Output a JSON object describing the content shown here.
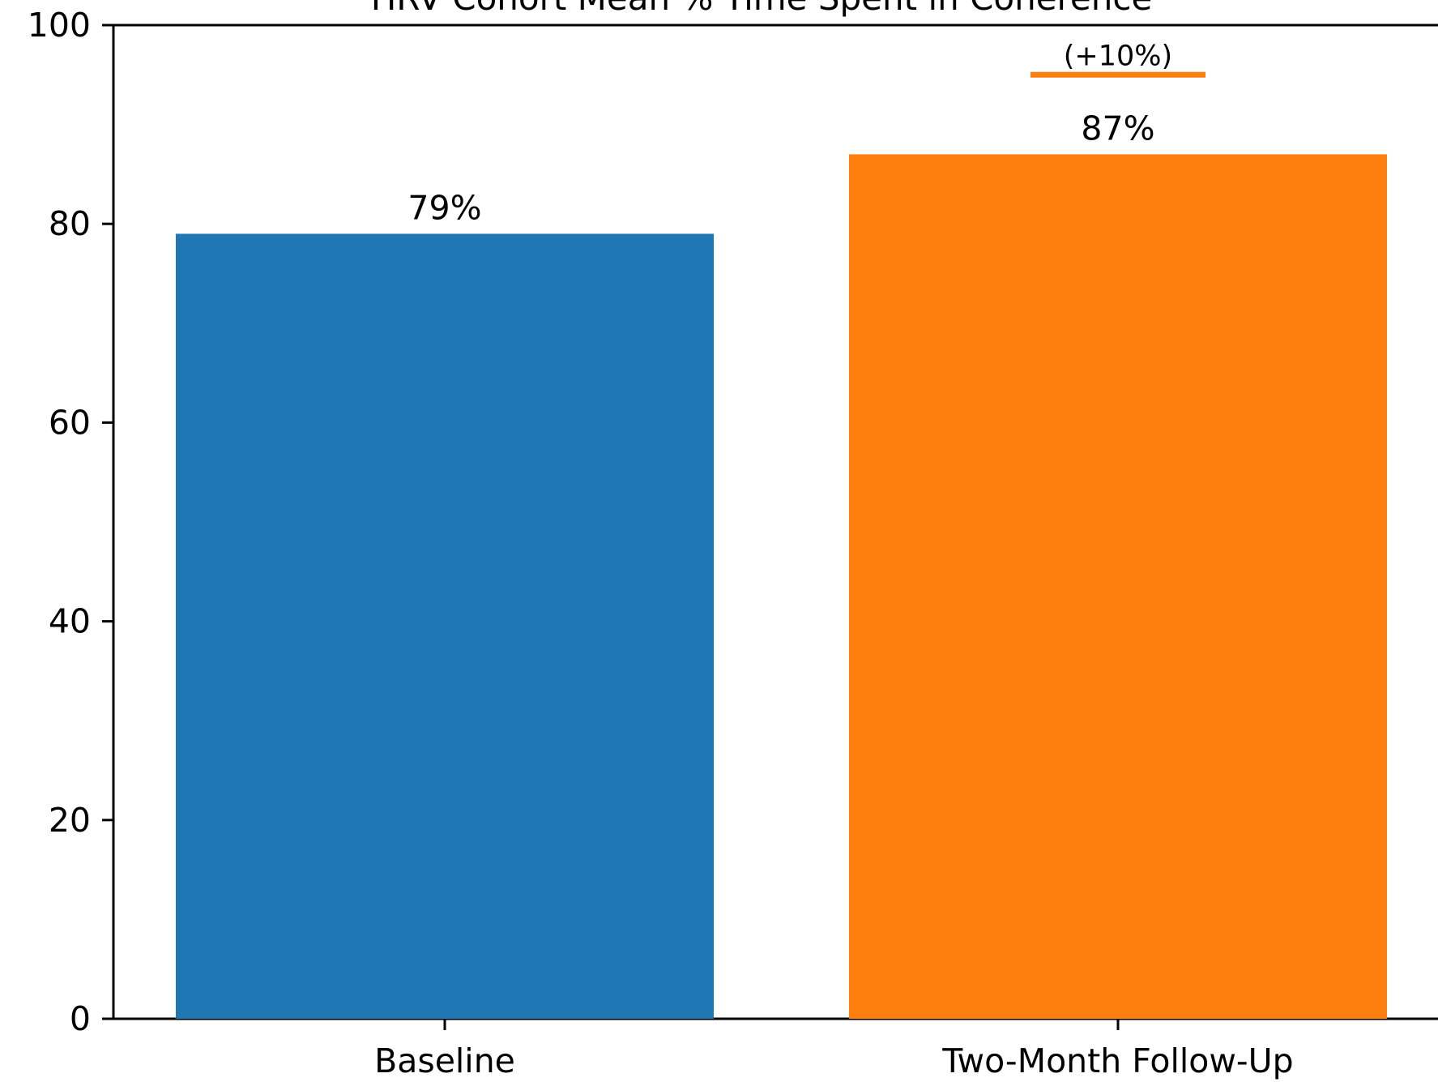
{
  "chart_data": {
    "type": "bar",
    "title": "HRV Cohort Mean % Time Spent in Coherence",
    "categories": [
      "Baseline",
      "Two-Month Follow-Up"
    ],
    "values": [
      79,
      87
    ],
    "value_labels": [
      "79%",
      "87%"
    ],
    "colors": [
      "#1f77b4",
      "#ff7f0e"
    ],
    "ylim": [
      0,
      100
    ],
    "yticks": [
      0,
      20,
      40,
      60,
      80,
      100
    ],
    "ytick_labels": [
      "0",
      "20",
      "40",
      "60",
      "80",
      "100"
    ],
    "annotation": {
      "text": "(+10%)",
      "category_index": 1,
      "y": 95,
      "color": "#ff7f0e"
    },
    "grid": false
  }
}
